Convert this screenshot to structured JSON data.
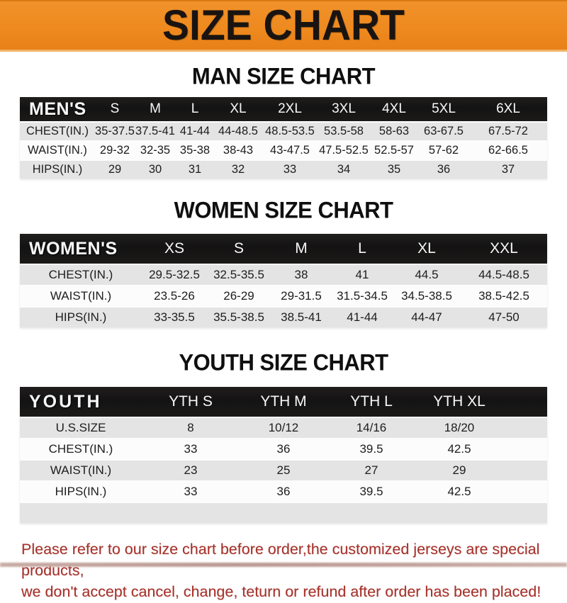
{
  "banner": {
    "title": "SIZE CHART"
  },
  "colors": {
    "banner_orange": "#ee8a1f",
    "header_bar_black": "#161413",
    "row_gray": "#e4e4e4",
    "row_white": "#fcfcfc",
    "note_red": "#a7312a"
  },
  "men_section": {
    "heading": "MAN SIZE CHART",
    "table": {
      "header": [
        "MEN'S",
        "S",
        "M",
        "L",
        "XL",
        "2XL",
        "3XL",
        "4XL",
        "5XL",
        "6XL"
      ],
      "rows": [
        {
          "label": "CHEST(IN.)",
          "values": [
            "35-37.5",
            "37.5-41",
            "41-44",
            "44-48.5",
            "48.5-53.5",
            "53.5-58",
            "58-63",
            "63-67.5",
            "67.5-72"
          ]
        },
        {
          "label": "WAIST(IN.)",
          "values": [
            "29-32",
            "32-35",
            "35-38",
            "38-43",
            "43-47.5",
            "47.5-52.5",
            "52.5-57",
            "57-62",
            "62-66.5"
          ]
        },
        {
          "label": "HIPS(IN.)",
          "values": [
            "29",
            "30",
            "31",
            "32",
            "33",
            "34",
            "35",
            "36",
            "37"
          ]
        }
      ]
    }
  },
  "women_section": {
    "heading": "WOMEN SIZE CHART",
    "table": {
      "header": [
        "WOMEN'S",
        "XS",
        "S",
        "M",
        "L",
        "XL",
        "XXL"
      ],
      "rows": [
        {
          "label": "CHEST(IN.)",
          "values": [
            "29.5-32.5",
            "32.5-35.5",
            "38",
            "41",
            "44.5",
            "44.5-48.5"
          ]
        },
        {
          "label": "WAIST(IN.)",
          "values": [
            "23.5-26",
            "26-29",
            "29-31.5",
            "31.5-34.5",
            "34.5-38.5",
            "38.5-42.5"
          ]
        },
        {
          "label": "HIPS(IN.)",
          "values": [
            "33-35.5",
            "35.5-38.5",
            "38.5-41",
            "41-44",
            "44-47",
            "47-50"
          ]
        }
      ]
    }
  },
  "youth_section": {
    "heading": "YOUTH SIZE CHART",
    "table": {
      "header": [
        "YOUTH",
        "YTH S",
        "YTH M",
        "YTH L",
        "YTH XL"
      ],
      "rows": [
        {
          "label": "U.S.SIZE",
          "values": [
            "8",
            "10/12",
            "14/16",
            "18/20"
          ]
        },
        {
          "label": "CHEST(IN.)",
          "values": [
            "33",
            "36",
            "39.5",
            "42.5"
          ]
        },
        {
          "label": "WAIST(IN.)",
          "values": [
            "23",
            "25",
            "27",
            "29"
          ]
        },
        {
          "label": "HIPS(IN.)",
          "values": [
            "33",
            "36",
            "39.5",
            "42.5"
          ]
        }
      ]
    }
  },
  "note": {
    "line1": "Please refer to our size chart before order,the customized jerseys are special products,",
    "line2": "we don't accept cancel, change, teturn or refund after order has been placed!"
  }
}
